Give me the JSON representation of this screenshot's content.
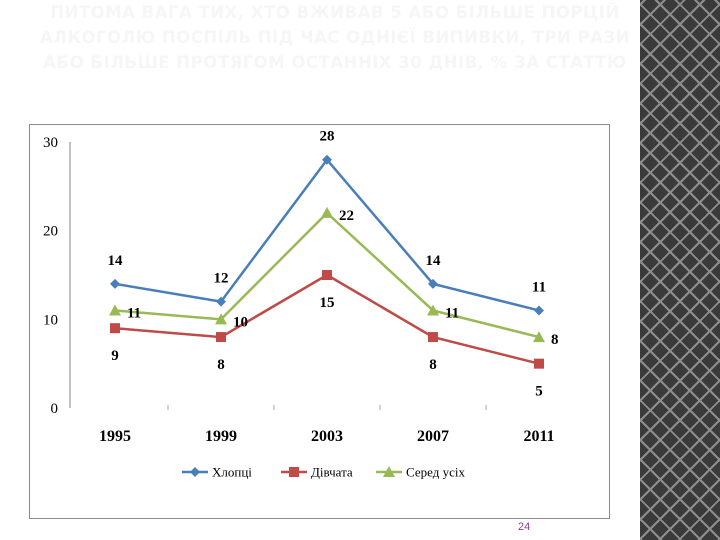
{
  "slide": {
    "title": "Питома вага тих, хто вживав 5 або більше порцій алкоголю поспіль під час однієї випивки, три рази або більше протягом останніх 30 днів, % за статтю",
    "page_number": "24"
  },
  "chart_data": {
    "type": "line",
    "title": "",
    "xlabel": "",
    "ylabel": "",
    "categories": [
      "1995",
      "1999",
      "2003",
      "2007",
      "2011"
    ],
    "ylim": [
      0,
      30
    ],
    "yticks": [
      "0",
      "10",
      "20",
      "30"
    ],
    "grid": false,
    "legend_position": "bottom",
    "series": [
      {
        "name": "Хлопці",
        "values": [
          14,
          12,
          28,
          14,
          11
        ],
        "color": "#4a7ebb",
        "marker": "diamond",
        "label_pos": [
          "above",
          "above",
          "above",
          "above",
          "above"
        ]
      },
      {
        "name": "Дівчата",
        "values": [
          9,
          8,
          15,
          8,
          5
        ],
        "color": "#be4b48",
        "marker": "square",
        "label_pos": [
          "below",
          "below",
          "below",
          "below",
          "below"
        ]
      },
      {
        "name": "Серед усіх",
        "values": [
          11,
          10,
          22,
          11,
          8
        ],
        "color": "#98b954",
        "marker": "triangle",
        "label_pos": [
          "right",
          "right",
          "right",
          "right",
          "right"
        ]
      }
    ]
  }
}
